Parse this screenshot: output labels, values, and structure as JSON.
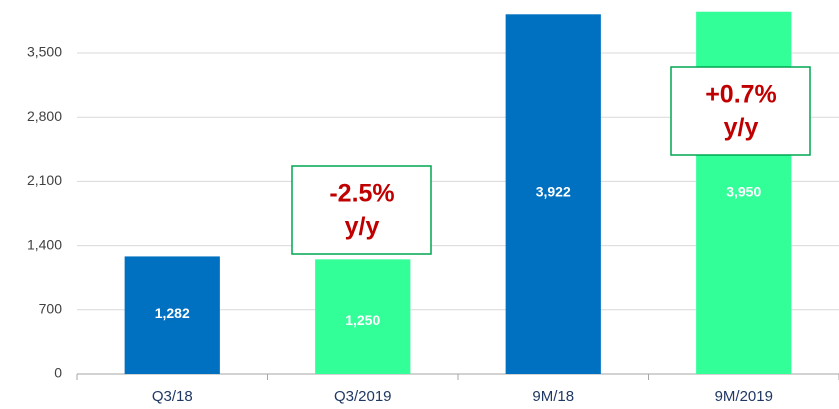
{
  "chart_data": {
    "type": "bar",
    "categories": [
      "Q3/18",
      "Q3/2019",
      "9M/18",
      "9M/2019"
    ],
    "values": [
      1282,
      1250,
      3922,
      3950
    ],
    "value_labels": [
      "1,282",
      "1,250",
      "3,922",
      "3,950"
    ],
    "colors": [
      "#0070c0",
      "#33ff99",
      "#0070c0",
      "#33ff99"
    ],
    "ylim": [
      0,
      4000
    ],
    "yticks": [
      0,
      700,
      {
        "value": 1400,
        "label": "1,400"
      },
      {
        "value": 2100,
        "label": "2,100"
      },
      {
        "value": 2800,
        "label": "2,800"
      },
      {
        "value": 3500,
        "label": "3,500"
      }
    ],
    "grid": true,
    "annotations": [
      [
        "-2.5%",
        "y/y"
      ],
      [
        "+0.7%",
        "y/y"
      ]
    ]
  }
}
